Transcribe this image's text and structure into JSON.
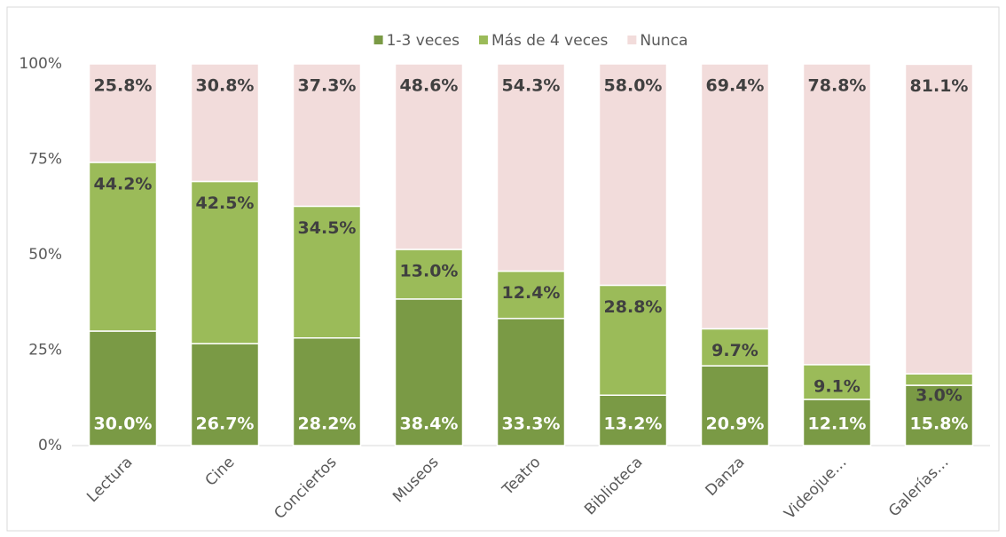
{
  "chart_data": {
    "type": "stacked_bar",
    "categories": [
      "Lectura",
      "Cine",
      "Conciertos",
      "Museos",
      "Teatro",
      "Biblioteca",
      "Danza",
      "Videojue…",
      "Galerías…"
    ],
    "series": [
      {
        "name": "1-3 veces",
        "color": "#7a9a45",
        "label_color": "#ffffff",
        "values": [
          30.0,
          26.7,
          28.2,
          38.4,
          33.3,
          13.2,
          20.9,
          12.1,
          15.8
        ],
        "value_labels": [
          "30.0%",
          "26.7%",
          "28.2%",
          "38.4%",
          "33.3%",
          "13.2%",
          "20.9%",
          "12.1%",
          "15.8%"
        ]
      },
      {
        "name": "Más de 4 veces",
        "color": "#9bbb59",
        "label_color": "#404040",
        "values": [
          44.2,
          42.5,
          34.5,
          13.0,
          12.4,
          28.8,
          9.7,
          9.1,
          3.0
        ],
        "value_labels": [
          "44.2%",
          "42.5%",
          "34.5%",
          "13.0%",
          "12.4%",
          "28.8%",
          "9.7%",
          "9.1%",
          "3.0%"
        ]
      },
      {
        "name": "Nunca",
        "color": "#f2dcdb",
        "label_color": "#404040",
        "values": [
          25.8,
          30.8,
          37.3,
          48.6,
          54.3,
          58.0,
          69.4,
          78.8,
          81.1
        ],
        "value_labels": [
          "25.8%",
          "30.8%",
          "37.3%",
          "48.6%",
          "54.3%",
          "58.0%",
          "69.4%",
          "78.8%",
          "81.1%"
        ]
      }
    ],
    "ylim": [
      0,
      100
    ],
    "yticks": [
      {
        "value": 0,
        "label": "0%"
      },
      {
        "value": 25,
        "label": "25%"
      },
      {
        "value": 50,
        "label": "50%"
      },
      {
        "value": 75,
        "label": "75%"
      },
      {
        "value": 100,
        "label": "100%"
      }
    ],
    "legend": "top"
  }
}
